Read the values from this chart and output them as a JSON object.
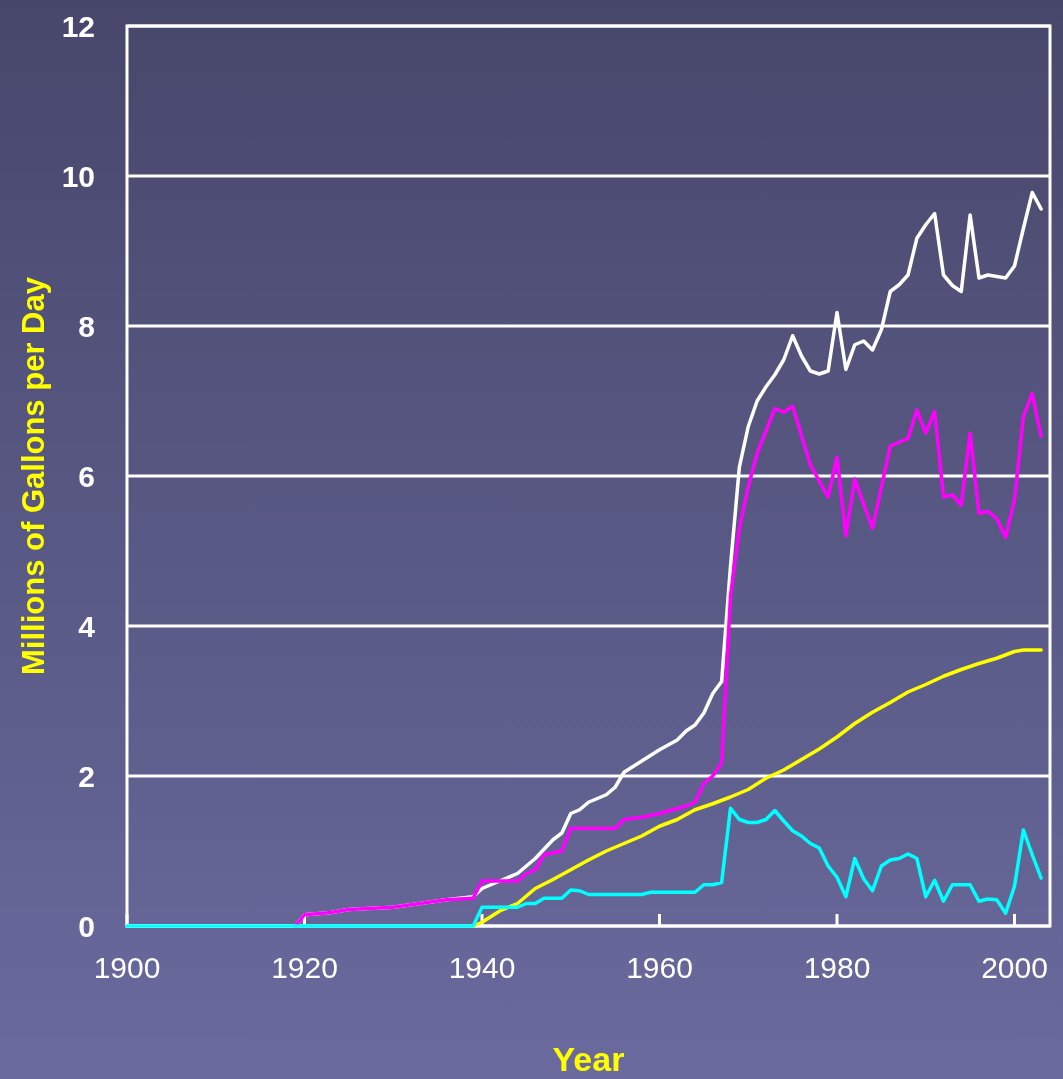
{
  "chart_data": {
    "type": "line",
    "xlabel": "Year",
    "ylabel": "Millions of Gallons per Day",
    "xlim": [
      1900,
      2004
    ],
    "ylim": [
      0,
      12
    ],
    "xticks": [
      1900,
      1920,
      1940,
      1960,
      1980,
      2000
    ],
    "yticks": [
      0,
      2,
      4,
      6,
      8,
      10,
      12
    ],
    "grid": "y",
    "marker": "none",
    "line_style": "solid",
    "series": [
      {
        "color": "#ffffff",
        "x": [
          1900,
          1919,
          1920,
          1923,
          1925,
          1930,
          1933,
          1936,
          1939,
          1940,
          1942,
          1944,
          1946,
          1948,
          1949,
          1950,
          1951,
          1952,
          1953,
          1954,
          1955,
          1956,
          1958,
          1960,
          1962,
          1963,
          1964,
          1965,
          1966,
          1967,
          1968,
          1969,
          1970,
          1971,
          1972,
          1973,
          1974,
          1975,
          1976,
          1977,
          1978,
          1979,
          1980,
          1981,
          1982,
          1983,
          1984,
          1985,
          1986,
          1987,
          1988,
          1989,
          1990,
          1991,
          1992,
          1993,
          1994,
          1995,
          1996,
          1997,
          1998,
          1999,
          2000,
          2001,
          2002,
          2003
        ],
        "values": [
          0,
          0,
          0.15,
          0.18,
          0.22,
          0.25,
          0.3,
          0.35,
          0.39,
          0.5,
          0.6,
          0.7,
          0.9,
          1.15,
          1.24,
          1.5,
          1.55,
          1.65,
          1.7,
          1.75,
          1.85,
          2.05,
          2.2,
          2.35,
          2.48,
          2.6,
          2.68,
          2.84,
          3.1,
          3.26,
          4.8,
          6.12,
          6.66,
          7.0,
          7.19,
          7.35,
          7.55,
          7.87,
          7.6,
          7.4,
          7.36,
          7.4,
          8.18,
          7.42,
          7.75,
          7.8,
          7.68,
          7.95,
          8.46,
          8.55,
          8.68,
          9.17,
          9.35,
          9.5,
          8.68,
          8.54,
          8.46,
          9.48,
          8.64,
          8.68,
          8.66,
          8.64,
          8.8,
          9.3,
          9.78,
          9.56
        ]
      },
      {
        "color": "#ff00ff",
        "x": [
          1919,
          1920,
          1923,
          1925,
          1930,
          1933,
          1936,
          1939,
          1940,
          1944,
          1945,
          1946,
          1947,
          1949,
          1950,
          1955,
          1956,
          1958,
          1960,
          1963,
          1964,
          1965,
          1966,
          1967,
          1968,
          1969,
          1970,
          1971,
          1972,
          1973,
          1974,
          1975,
          1977,
          1979,
          1980,
          1981,
          1982,
          1984,
          1986,
          1988,
          1989,
          1990,
          1991,
          1992,
          1993,
          1994,
          1995,
          1996,
          1997,
          1998,
          1999,
          2000,
          2001,
          2002,
          2003
        ],
        "values": [
          0,
          0.15,
          0.18,
          0.22,
          0.25,
          0.3,
          0.35,
          0.37,
          0.6,
          0.6,
          0.7,
          0.75,
          0.95,
          1.0,
          1.3,
          1.3,
          1.42,
          1.45,
          1.5,
          1.6,
          1.65,
          1.9,
          2.0,
          2.17,
          4.4,
          5.3,
          5.86,
          6.3,
          6.6,
          6.9,
          6.85,
          6.93,
          6.15,
          5.72,
          6.25,
          5.2,
          5.96,
          5.3,
          6.4,
          6.5,
          6.88,
          6.57,
          6.86,
          5.72,
          5.75,
          5.61,
          6.57,
          5.5,
          5.53,
          5.43,
          5.18,
          5.68,
          6.79,
          7.1,
          6.53
        ]
      },
      {
        "color": "#ffff00",
        "x": [
          1939,
          1940,
          1942,
          1944,
          1946,
          1948,
          1950,
          1952,
          1954,
          1956,
          1958,
          1960,
          1962,
          1964,
          1966,
          1968,
          1970,
          1972,
          1974,
          1976,
          1978,
          1980,
          1982,
          1984,
          1986,
          1988,
          1990,
          1992,
          1994,
          1996,
          1998,
          2000,
          2001,
          2003
        ],
        "values": [
          0,
          0.05,
          0.2,
          0.3,
          0.5,
          0.62,
          0.75,
          0.88,
          1.0,
          1.1,
          1.2,
          1.33,
          1.42,
          1.55,
          1.63,
          1.72,
          1.82,
          1.97,
          2.08,
          2.22,
          2.36,
          2.52,
          2.7,
          2.85,
          2.98,
          3.12,
          3.22,
          3.33,
          3.42,
          3.5,
          3.57,
          3.66,
          3.68,
          3.68
        ]
      },
      {
        "color": "#00ffff",
        "x": [
          1900,
          1939,
          1940,
          1944,
          1945,
          1946,
          1947,
          1949,
          1950,
          1951,
          1952,
          1958,
          1959,
          1964,
          1965,
          1966,
          1967,
          1968,
          1969,
          1970,
          1971,
          1972,
          1973,
          1974,
          1975,
          1976,
          1977,
          1978,
          1979,
          1980,
          1981,
          1982,
          1983,
          1984,
          1985,
          1986,
          1987,
          1988,
          1989,
          1990,
          1991,
          1992,
          1993,
          1994,
          1995,
          1996,
          1997,
          1998,
          1999,
          2000,
          2001,
          2002,
          2003
        ],
        "values": [
          0,
          0,
          0.25,
          0.25,
          0.3,
          0.3,
          0.37,
          0.37,
          0.48,
          0.47,
          0.42,
          0.42,
          0.45,
          0.45,
          0.55,
          0.55,
          0.58,
          1.57,
          1.42,
          1.38,
          1.38,
          1.42,
          1.54,
          1.4,
          1.27,
          1.2,
          1.1,
          1.04,
          0.8,
          0.65,
          0.39,
          0.9,
          0.63,
          0.47,
          0.8,
          0.88,
          0.9,
          0.96,
          0.9,
          0.39,
          0.61,
          0.33,
          0.55,
          0.55,
          0.55,
          0.33,
          0.36,
          0.35,
          0.17,
          0.53,
          1.28,
          0.95,
          0.64
        ]
      }
    ]
  }
}
